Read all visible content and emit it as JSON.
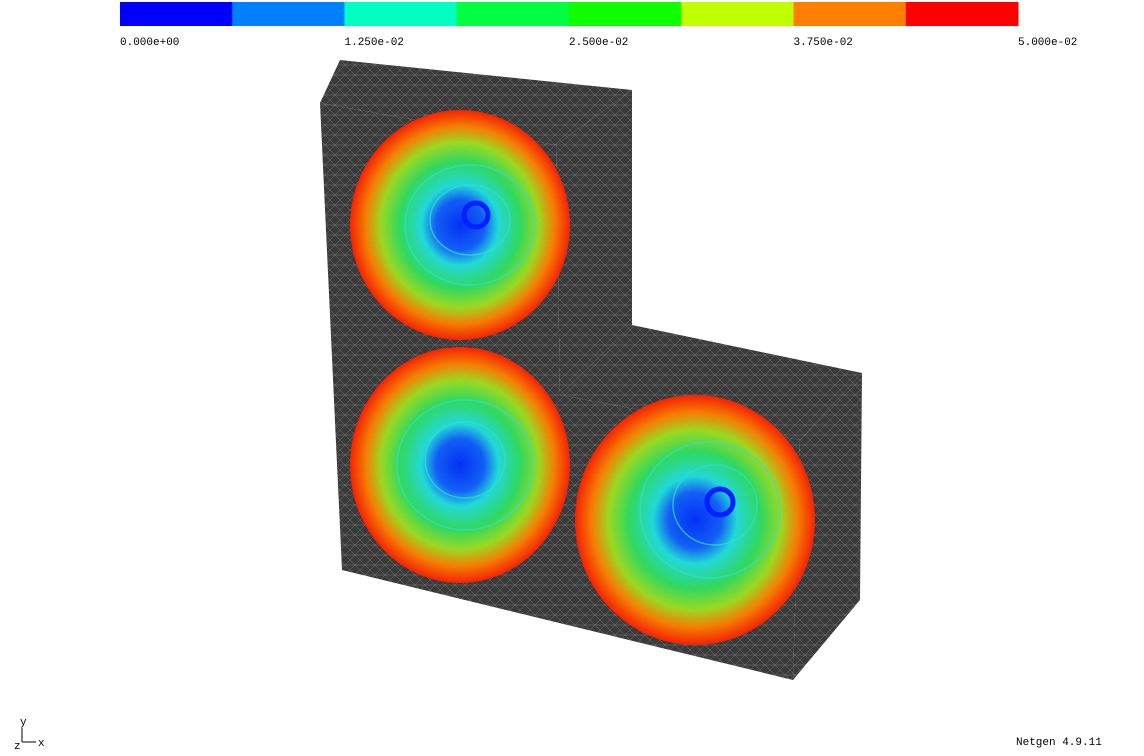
{
  "colorbar": {
    "range": [
      0,
      0.05
    ],
    "colors": [
      "#0000ff",
      "#0080ff",
      "#00ffc0",
      "#00ff40",
      "#10ff00",
      "#c0ff00",
      "#ff8000",
      "#ff0000"
    ],
    "ticks": [
      {
        "value": 0,
        "label": "0.000e+00"
      },
      {
        "value": 0.0125,
        "label": "1.250e-02"
      },
      {
        "value": 0.025,
        "label": "2.500e-02"
      },
      {
        "value": 0.0375,
        "label": "3.750e-02"
      },
      {
        "value": 0.05,
        "label": "5.000e-02"
      }
    ]
  },
  "axes": {
    "y": "y",
    "x": "x",
    "z": "z"
  },
  "version": "Netgen 4.9.11"
}
